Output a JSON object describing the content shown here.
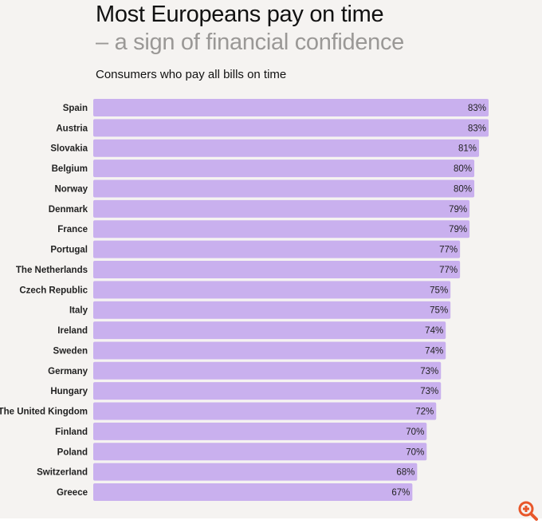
{
  "title": "Most Europeans pay on time",
  "title_line2": "– a sign of financial confidence",
  "subtitle": "Consumers who pay all bills on time",
  "colors": {
    "bar": "#c9b0ee",
    "background": "#f5f3f1",
    "zoom_icon": "#e8572a"
  },
  "icons": {
    "zoom": "zoom-in-icon"
  },
  "chart_data": {
    "type": "bar",
    "orientation": "horizontal",
    "categories": [
      "Spain",
      "Austria",
      "Slovakia",
      "Belgium",
      "Norway",
      "Denmark",
      "France",
      "Portugal",
      "The Netherlands",
      "Czech Republic",
      "Italy",
      "Ireland",
      "Sweden",
      "Germany",
      "Hungary",
      "The United Kingdom",
      "Finland",
      "Poland",
      "Switzerland",
      "Greece"
    ],
    "values": [
      83,
      83,
      81,
      80,
      80,
      79,
      79,
      77,
      77,
      75,
      75,
      74,
      74,
      73,
      73,
      72,
      70,
      70,
      68,
      67
    ],
    "labels": [
      "83%",
      "83%",
      "81%",
      "80%",
      "80%",
      "79%",
      "79%",
      "77%",
      "77%",
      "75%",
      "75%",
      "74%",
      "74%",
      "73%",
      "73%",
      "72%",
      "70%",
      "70%",
      "68%",
      "67%"
    ],
    "unit": "%",
    "xlim": [
      0,
      83
    ],
    "grid": false,
    "legend": "none"
  }
}
